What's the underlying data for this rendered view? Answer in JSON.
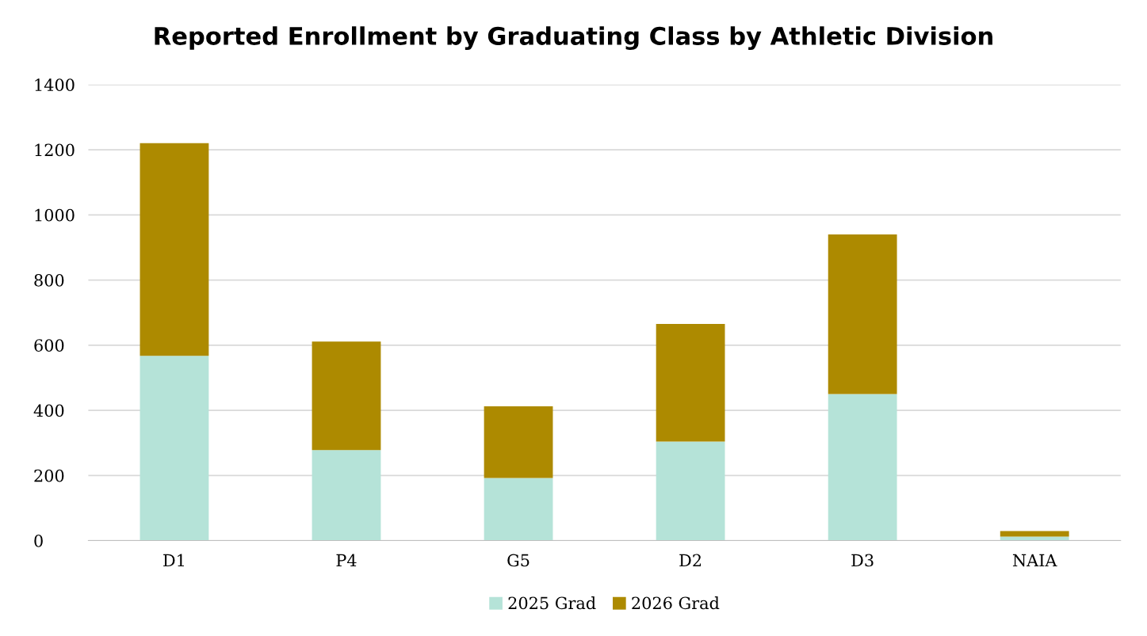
{
  "chart_data": {
    "type": "bar",
    "title": "Reported Enrollment by Graduating Class by Athletic Division",
    "categories": [
      "D1",
      "P4",
      "G5",
      "D2",
      "D3",
      "NAIA"
    ],
    "stacked": true,
    "series": [
      {
        "name": "2025 Grad",
        "color": "#b5e3d8",
        "values": [
          567,
          278,
          192,
          304,
          450,
          12
        ]
      },
      {
        "name": "2026 Grad",
        "color": "#ad8a00",
        "values": [
          653,
          333,
          220,
          361,
          490,
          17
        ]
      }
    ],
    "ylim": [
      0,
      1400
    ],
    "yticks": [
      0,
      200,
      400,
      600,
      800,
      1000,
      1200,
      1400
    ],
    "grid": "y",
    "legend": "bottom"
  }
}
